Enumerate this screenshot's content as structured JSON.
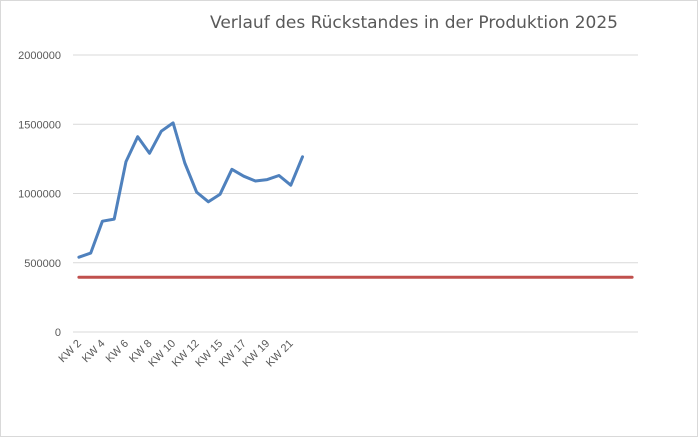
{
  "chart_data": {
    "type": "line",
    "title": "Verlauf des Rückstandes in der Produktion 2025",
    "xlabel": "",
    "ylabel": "",
    "ylim": [
      0,
      2000000
    ],
    "yticks": [
      0,
      500000,
      1000000,
      1500000,
      2000000
    ],
    "ytick_labels": [
      "0",
      "500000",
      "1000000",
      "1500000",
      "2000000"
    ],
    "x_category_count": 48,
    "x_tick_labels": [
      "KW 2",
      "KW 4",
      "KW 6",
      "KW 8",
      "KW 10",
      "KW 12",
      "KW 15",
      "KW 17",
      "KW 19",
      "KW 21"
    ],
    "grid": true,
    "legend": "none",
    "series": [
      {
        "color": "#4f81bd",
        "values": [
          540000,
          570000,
          800000,
          815000,
          1230000,
          1410000,
          1290000,
          1450000,
          1510000,
          1220000,
          1010000,
          940000,
          995000,
          1175000,
          1125000,
          1090000,
          1100000,
          1130000,
          1060000,
          1265000
        ]
      },
      {
        "color": "#c0504d",
        "values": [
          395000,
          395000,
          395000,
          395000,
          395000,
          395000,
          395000,
          395000,
          395000,
          395000,
          395000,
          395000,
          395000,
          395000,
          395000,
          395000,
          395000,
          395000,
          395000,
          395000,
          395000,
          395000,
          395000,
          395000,
          395000,
          395000,
          395000,
          395000,
          395000,
          395000,
          395000,
          395000,
          395000,
          395000,
          395000,
          395000,
          395000,
          395000,
          395000,
          395000,
          395000,
          395000,
          395000,
          395000,
          395000,
          395000,
          395000,
          395000
        ]
      }
    ]
  }
}
